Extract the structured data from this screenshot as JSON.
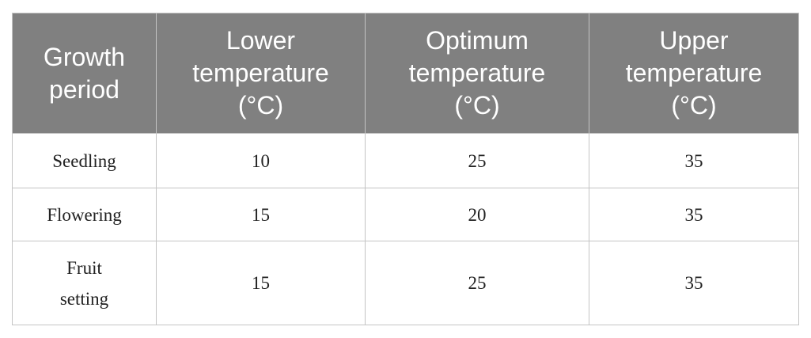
{
  "table": {
    "header": [
      [
        "Growth",
        "period"
      ],
      [
        "Lower",
        "temperature",
        "(°C)"
      ],
      [
        "Optimum",
        "temperature",
        "(°C)"
      ],
      [
        "Upper",
        "temperature",
        "(°C)"
      ]
    ],
    "rows": [
      [
        [
          "Seedling"
        ],
        10,
        25,
        35
      ],
      [
        [
          "Flowering"
        ],
        15,
        20,
        35
      ],
      [
        [
          "Fruit",
          "setting"
        ],
        15,
        25,
        35
      ]
    ]
  }
}
